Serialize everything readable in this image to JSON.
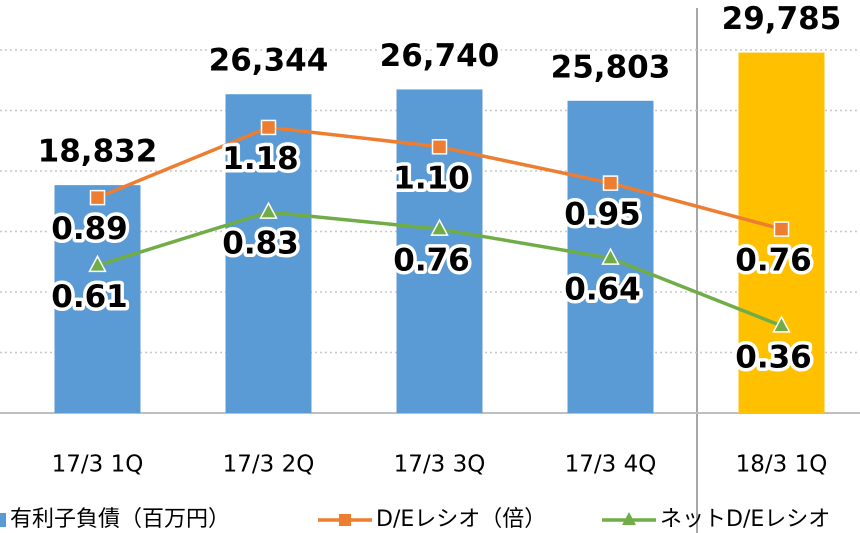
{
  "chart_data": {
    "type": "bar",
    "categories": [
      "17/3 1Q",
      "17/3 2Q",
      "17/3 3Q",
      "17/3 4Q",
      "18/3 1Q"
    ],
    "series": [
      {
        "name": "有利子負債（百万円）",
        "type": "bar",
        "color": "#5b9bd5",
        "colors": [
          "#5b9bd5",
          "#5b9bd5",
          "#5b9bd5",
          "#5b9bd5",
          "#ffc000"
        ],
        "values": [
          18832,
          26344,
          26740,
          25803,
          29785
        ],
        "value_labels": [
          "18,832",
          "26,344",
          "26,740",
          "25,803",
          "29,785"
        ]
      },
      {
        "name": "D/Eレシオ（倍）",
        "type": "line",
        "axis": "y2",
        "marker": "square",
        "color": "#ed7d31",
        "values": [
          0.89,
          1.18,
          1.1,
          0.95,
          0.76
        ],
        "value_labels": [
          "0.89",
          "1.18",
          "1.10",
          "0.95",
          "0.76"
        ]
      },
      {
        "name": "ネットD/Eレシオ",
        "type": "line",
        "axis": "y2",
        "marker": "triangle",
        "color": "#70ad47",
        "values": [
          0.61,
          0.83,
          0.76,
          0.64,
          0.36
        ],
        "value_labels": [
          "0.61",
          "0.83",
          "0.76",
          "0.64",
          "0.36"
        ]
      }
    ],
    "ylim": [
      0,
      30000
    ],
    "yticks": [
      0,
      5000,
      10000,
      15000,
      20000,
      25000,
      30000
    ],
    "y2lim": [
      0,
      1.5
    ],
    "grid": true,
    "legend": "bottom"
  }
}
